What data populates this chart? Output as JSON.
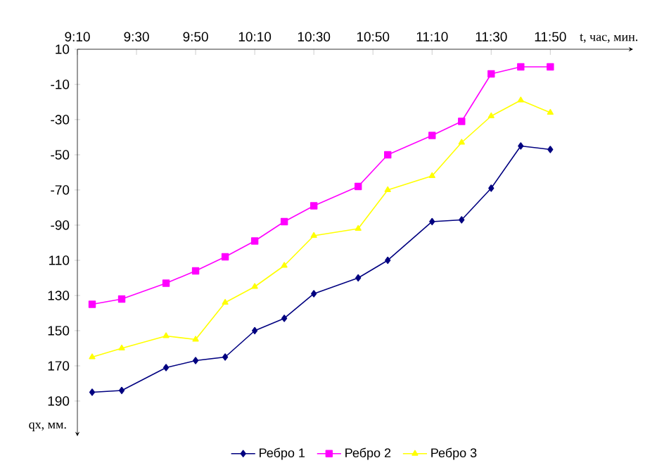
{
  "chart_data": {
    "type": "line",
    "xlabel": "t, час, мин.",
    "ylabel": "qx, мм.",
    "x": [
      9.25,
      9.4167,
      9.6667,
      9.8333,
      10.0,
      10.1667,
      10.3333,
      10.5,
      10.75,
      10.9167,
      11.1667,
      11.3333,
      11.5,
      11.6667,
      11.8333
    ],
    "series": [
      {
        "name": "Ребро 1",
        "color": "#000080",
        "marker": "diamond",
        "values": [
          -185,
          -184,
          -171,
          -167,
          -165,
          -150,
          -143,
          -129,
          -120,
          -110,
          -88,
          -87,
          -69,
          -45,
          -47
        ]
      },
      {
        "name": "Ребро 2",
        "color": "#ff00ff",
        "marker": "square",
        "values": [
          -135,
          -132,
          -123,
          -116,
          -108,
          -99,
          -88,
          -79,
          -68,
          -50,
          -39,
          -31,
          -4,
          0,
          0
        ]
      },
      {
        "name": "Ребро 3",
        "color": "#ffff00",
        "marker": "triangle",
        "values": [
          -165,
          -160,
          -153,
          -155,
          -134,
          -125,
          -113,
          -96,
          -92,
          -70,
          -62,
          -43,
          -28,
          -19,
          -26
        ]
      }
    ],
    "xlim": [
      9.1667,
      12.3
    ],
    "ylim": [
      -210,
      10
    ],
    "xticks": [
      {
        "value": 9.1667,
        "label": "9:10"
      },
      {
        "value": 9.5,
        "label": "9:30"
      },
      {
        "value": 9.8333,
        "label": "9:50"
      },
      {
        "value": 10.1667,
        "label": "10:10"
      },
      {
        "value": 10.5,
        "label": "10:30"
      },
      {
        "value": 10.8333,
        "label": "10:50"
      },
      {
        "value": 11.1667,
        "label": "11:10"
      },
      {
        "value": 11.5,
        "label": "11:30"
      },
      {
        "value": 11.8333,
        "label": "11:50"
      }
    ],
    "yticks": [
      10,
      -10,
      -30,
      -50,
      -70,
      -90,
      {
        "value": -110,
        "label": "110"
      },
      {
        "value": -130,
        "label": "130"
      },
      {
        "value": -150,
        "label": "150"
      },
      {
        "value": -170,
        "label": "170"
      },
      {
        "value": -190,
        "label": "190"
      }
    ],
    "legend": "bottom"
  }
}
